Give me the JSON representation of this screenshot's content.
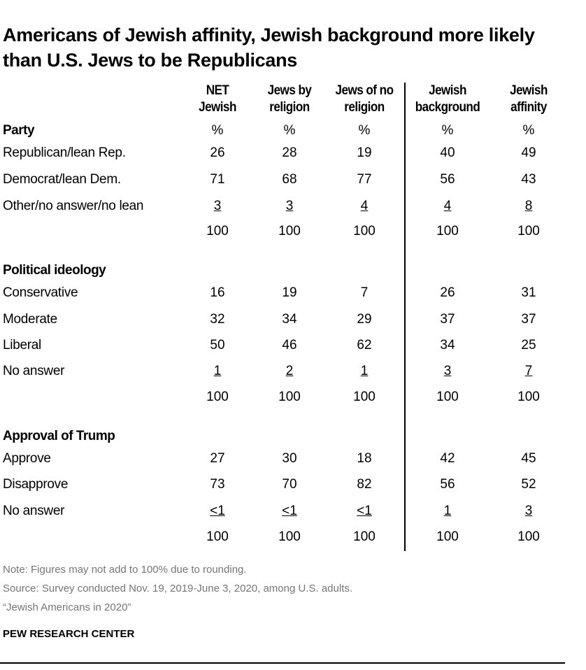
{
  "chart_data": {
    "type": "table",
    "title": "Americans of Jewish affinity, Jewish background more likely than U.S. Jews to be Republicans",
    "columns": [
      [
        "NET",
        "Jewish"
      ],
      [
        "Jews by",
        "religion"
      ],
      [
        "Jews of no",
        "religion"
      ],
      [
        "Jewish",
        "background"
      ],
      [
        "Jewish",
        "affinity"
      ]
    ],
    "sections": [
      {
        "heading": "Party",
        "unit": "%",
        "rows": [
          {
            "label": "Republican/lean Rep.",
            "values": [
              "26",
              "28",
              "19",
              "40",
              "49"
            ]
          },
          {
            "label": "Democrat/lean Dem.",
            "values": [
              "71",
              "68",
              "77",
              "56",
              "43"
            ]
          },
          {
            "label": "Other/no answer/no lean",
            "values": [
              "3",
              "3",
              "4",
              "4",
              "8"
            ],
            "underlined": true
          },
          {
            "label": "",
            "values": [
              "100",
              "100",
              "100",
              "100",
              "100"
            ]
          }
        ]
      },
      {
        "heading": "Political ideology",
        "rows": [
          {
            "label": "Conservative",
            "values": [
              "16",
              "19",
              "7",
              "26",
              "31"
            ]
          },
          {
            "label": "Moderate",
            "values": [
              "32",
              "34",
              "29",
              "37",
              "37"
            ]
          },
          {
            "label": "Liberal",
            "values": [
              "50",
              "46",
              "62",
              "34",
              "25"
            ]
          },
          {
            "label": "No answer",
            "values": [
              "1",
              "2",
              "1",
              "3",
              "7"
            ],
            "underlined": true
          },
          {
            "label": "",
            "values": [
              "100",
              "100",
              "100",
              "100",
              "100"
            ]
          }
        ]
      },
      {
        "heading": "Approval of Trump",
        "rows": [
          {
            "label": "Approve",
            "values": [
              "27",
              "30",
              "18",
              "42",
              "45"
            ]
          },
          {
            "label": "Disapprove",
            "values": [
              "73",
              "70",
              "82",
              "56",
              "52"
            ]
          },
          {
            "label": "No answer",
            "values": [
              "<1",
              "<1",
              "<1",
              "1",
              "3"
            ],
            "underlined": true
          },
          {
            "label": "",
            "values": [
              "100",
              "100",
              "100",
              "100",
              "100"
            ]
          }
        ]
      }
    ]
  },
  "notes": {
    "note": "Note: Figures may not add to 100% due to rounding.",
    "source": "Source: Survey conducted Nov. 19, 2019-June 3, 2020, among U.S. adults.",
    "report": "“Jewish Americans in 2020”",
    "brand": "PEW RESEARCH CENTER"
  }
}
